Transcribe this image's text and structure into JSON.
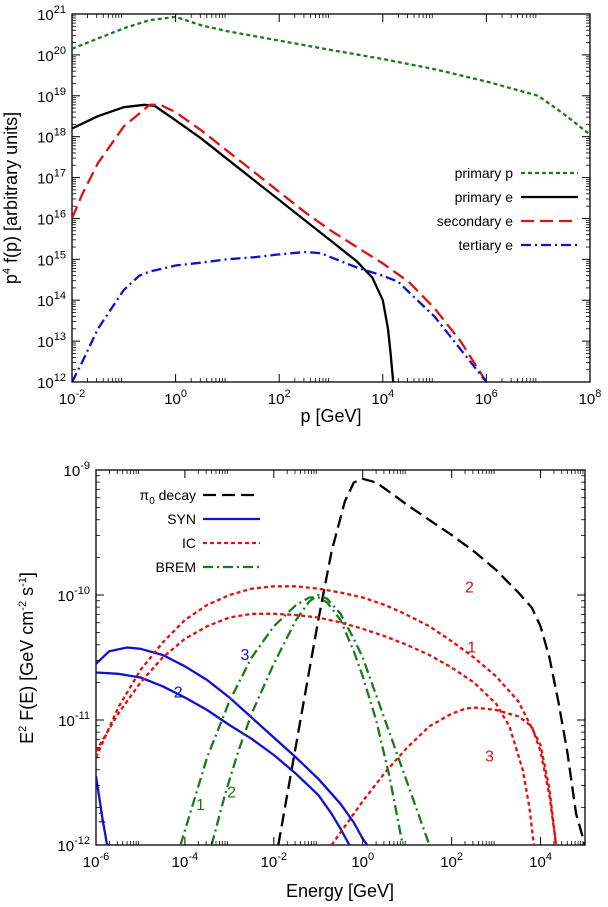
{
  "chart_data": [
    {
      "type": "line",
      "xlabel": "p [GeV]",
      "ylabel_base": "p",
      "ylabel_sup": "4",
      "ylabel_rest": " f(p) [arbitrary units]",
      "xscale": "log",
      "yscale": "log",
      "xlim": [
        0.01,
        100000000
      ],
      "ylim": [
        1000000000000.0,
        1e+21
      ],
      "xticks": [
        {
          "exp": -2,
          "base": "10",
          "sup": "-2"
        },
        {
          "exp": 0,
          "base": "10",
          "sup": "0"
        },
        {
          "exp": 2,
          "base": "10",
          "sup": "2"
        },
        {
          "exp": 4,
          "base": "10",
          "sup": "4"
        },
        {
          "exp": 6,
          "base": "10",
          "sup": "6"
        },
        {
          "exp": 8,
          "base": "10",
          "sup": "8"
        }
      ],
      "yticks": [
        {
          "exp": 12,
          "base": "10",
          "sup": "12"
        },
        {
          "exp": 13,
          "base": "10",
          "sup": "13"
        },
        {
          "exp": 14,
          "base": "10",
          "sup": "14"
        },
        {
          "exp": 15,
          "base": "10",
          "sup": "15"
        },
        {
          "exp": 16,
          "base": "10",
          "sup": "16"
        },
        {
          "exp": 17,
          "base": "10",
          "sup": "17"
        },
        {
          "exp": 18,
          "base": "10",
          "sup": "18"
        },
        {
          "exp": 19,
          "base": "10",
          "sup": "19"
        },
        {
          "exp": 20,
          "base": "10",
          "sup": "20"
        },
        {
          "exp": 21,
          "base": "10",
          "sup": "21"
        }
      ],
      "legend_position": "right",
      "series": [
        {
          "name": "primary p",
          "color": "#1a7a1a",
          "dash": "short-dash",
          "logx": [
            -2,
            -1.5,
            -1,
            -0.5,
            0,
            0.5,
            1,
            2,
            3,
            4,
            5,
            6,
            7,
            7.5,
            8
          ],
          "logy": [
            20.15,
            20.4,
            20.65,
            20.85,
            20.93,
            20.72,
            20.58,
            20.35,
            20.12,
            19.9,
            19.65,
            19.35,
            19.0,
            18.55,
            18.05
          ]
        },
        {
          "name": "primary e",
          "color": "#000000",
          "dash": "solid",
          "logx": [
            -2,
            -1.5,
            -1,
            -0.6,
            -0.4,
            0,
            0.5,
            1,
            1.5,
            2,
            2.5,
            3,
            3.5,
            3.8,
            4,
            4.1,
            4.15,
            4.2
          ],
          "logy": [
            18.2,
            18.5,
            18.72,
            18.78,
            18.75,
            18.4,
            17.95,
            17.45,
            16.95,
            16.45,
            15.95,
            15.45,
            14.95,
            14.55,
            14.0,
            13.3,
            12.7,
            12.0
          ]
        },
        {
          "name": "secondary e",
          "color": "#e01010",
          "dash": "long-dash",
          "logx": [
            -2,
            -1.8,
            -1.5,
            -1,
            -0.5,
            -0.3,
            0,
            0.5,
            1,
            1.5,
            2,
            2.5,
            3,
            3.5,
            4,
            4.5,
            5,
            5.5,
            6
          ],
          "logy": [
            16.0,
            16.6,
            17.35,
            18.25,
            18.78,
            18.78,
            18.6,
            18.15,
            17.65,
            17.15,
            16.65,
            16.15,
            15.7,
            15.3,
            14.9,
            14.45,
            13.8,
            13.0,
            12.0
          ]
        },
        {
          "name": "tertiary e",
          "color": "#1010d0",
          "dash": "dash-dot",
          "logx": [
            -2,
            -1.8,
            -1.5,
            -1,
            -0.7,
            -0.5,
            0,
            0.5,
            1,
            1.5,
            2,
            2.5,
            2.8,
            3,
            3.5,
            4,
            4.3,
            4.5,
            5,
            5.5,
            6
          ],
          "logy": [
            12.0,
            12.5,
            13.3,
            14.25,
            14.6,
            14.7,
            14.85,
            14.92,
            15.0,
            15.05,
            15.12,
            15.18,
            15.15,
            15.05,
            14.8,
            14.6,
            14.45,
            14.2,
            13.6,
            12.8,
            12.0
          ]
        }
      ]
    },
    {
      "type": "line",
      "xlabel": "Energy [GeV]",
      "ylabel_base": "E",
      "ylabel_sup": "2",
      "ylabel_rest": " F(E) [GeV cm",
      "ylabel_sup2": "-2",
      "ylabel_rest2": " s",
      "ylabel_sup3": "-1",
      "ylabel_end": "]",
      "xscale": "log",
      "yscale": "log",
      "xlim": [
        1e-06,
        100000
      ],
      "ylim": [
        1e-12,
        1e-09
      ],
      "xticks": [
        {
          "exp": -6,
          "base": "10",
          "sup": "-6"
        },
        {
          "exp": -4,
          "base": "10",
          "sup": "-4"
        },
        {
          "exp": -2,
          "base": "10",
          "sup": "-2"
        },
        {
          "exp": 0,
          "base": "10",
          "sup": "0"
        },
        {
          "exp": 2,
          "base": "10",
          "sup": "2"
        },
        {
          "exp": 4,
          "base": "10",
          "sup": "4"
        }
      ],
      "yticks": [
        {
          "exp": -12,
          "base": "10",
          "sup": "-12"
        },
        {
          "exp": -11,
          "base": "10",
          "sup": "-11"
        },
        {
          "exp": -10,
          "base": "10",
          "sup": "-10"
        },
        {
          "exp": -9,
          "base": "10",
          "sup": "-9"
        }
      ],
      "legend_position": "top-left",
      "legend": [
        {
          "name": "π",
          "sub": "0",
          "rest": " decay",
          "color": "#000000",
          "dash": "long-dash"
        },
        {
          "name": "SYN",
          "color": "#1010d0",
          "dash": "solid"
        },
        {
          "name": "IC",
          "color": "#e01010",
          "dash": "short-dash"
        },
        {
          "name": "BREM",
          "color": "#1a7a1a",
          "dash": "dash-dot"
        }
      ],
      "series": [
        {
          "id": "pi0",
          "color": "#000000",
          "dash": "long-dash",
          "logx": [
            -1.9,
            -1.6,
            -1.3,
            -1,
            -0.7,
            -0.4,
            -0.2,
            0,
            0.3,
            0.7,
            1,
            1.5,
            2,
            2.5,
            3,
            3.5,
            3.8,
            4,
            4.2,
            4.4,
            4.6,
            4.8,
            5
          ],
          "logy": [
            -12,
            -11.4,
            -10.8,
            -10.2,
            -9.65,
            -9.25,
            -9.1,
            -9.07,
            -9.1,
            -9.2,
            -9.28,
            -9.4,
            -9.52,
            -9.65,
            -9.8,
            -9.98,
            -10.1,
            -10.25,
            -10.5,
            -10.85,
            -11.25,
            -11.75,
            -12
          ]
        },
        {
          "id": "syn1",
          "color": "#1010d0",
          "dash": "solid",
          "logx": [
            -6,
            -5.85,
            -5.75,
            -5.7
          ],
          "logy": [
            -11.45,
            -11.8,
            -12.0,
            -12.0
          ]
        },
        {
          "id": "syn2",
          "color": "#1010d0",
          "dash": "solid",
          "logx": [
            -6,
            -5.5,
            -5,
            -4.5,
            -4,
            -3.5,
            -3,
            -2.5,
            -2,
            -1.5,
            -1,
            -0.7,
            -0.5,
            -0.3
          ],
          "logy": [
            -10.62,
            -10.63,
            -10.66,
            -10.73,
            -10.82,
            -10.92,
            -11.04,
            -11.15,
            -11.28,
            -11.43,
            -11.6,
            -11.75,
            -11.87,
            -12.0
          ]
        },
        {
          "id": "syn3",
          "color": "#1010d0",
          "dash": "solid",
          "logx": [
            -6,
            -5.7,
            -5.3,
            -5,
            -4.5,
            -4,
            -3.5,
            -3,
            -2.5,
            -2,
            -1.5,
            -1,
            -0.5,
            -0.2,
            0,
            0.1
          ],
          "logy": [
            -10.55,
            -10.45,
            -10.42,
            -10.43,
            -10.48,
            -10.57,
            -10.68,
            -10.82,
            -10.98,
            -11.14,
            -11.3,
            -11.47,
            -11.67,
            -11.82,
            -11.95,
            -12.0
          ]
        },
        {
          "id": "ic1",
          "color": "#e01010",
          "dash": "short-dash",
          "logx": [
            -6,
            -5.5,
            -5,
            -4.5,
            -4,
            -3.5,
            -3,
            -2.5,
            -2,
            -1.5,
            -1,
            -0.5,
            0,
            0.5,
            1,
            1.5,
            2,
            2.5,
            3,
            3.3,
            3.6,
            3.75,
            3.85
          ],
          "logy": [
            -11.25,
            -10.95,
            -10.7,
            -10.5,
            -10.35,
            -10.25,
            -10.18,
            -10.15,
            -10.15,
            -10.16,
            -10.18,
            -10.22,
            -10.27,
            -10.33,
            -10.4,
            -10.48,
            -10.58,
            -10.7,
            -10.87,
            -11.05,
            -11.4,
            -11.7,
            -12.0
          ]
        },
        {
          "id": "ic2",
          "color": "#e01010",
          "dash": "short-dash",
          "logx": [
            -6,
            -5.5,
            -5,
            -4.5,
            -4,
            -3.5,
            -3,
            -2.5,
            -2,
            -1.5,
            -1,
            -0.5,
            0,
            0.5,
            1,
            1.5,
            2,
            2.5,
            3,
            3.5,
            4,
            4.2,
            4.35
          ],
          "logy": [
            -11.3,
            -10.9,
            -10.6,
            -10.38,
            -10.2,
            -10.08,
            -10.0,
            -9.95,
            -9.93,
            -9.93,
            -9.95,
            -9.98,
            -10.02,
            -10.08,
            -10.16,
            -10.25,
            -10.37,
            -10.5,
            -10.65,
            -10.85,
            -11.2,
            -11.55,
            -12.0
          ]
        },
        {
          "id": "ic3",
          "color": "#e01010",
          "dash": "short-dash",
          "logx": [
            -0.7,
            -0.4,
            0,
            0.5,
            1,
            1.5,
            2,
            2.3,
            2.5,
            3,
            3.5,
            3.8,
            4,
            4.2,
            4.35
          ],
          "logy": [
            -12.0,
            -11.85,
            -11.65,
            -11.42,
            -11.22,
            -11.05,
            -10.95,
            -10.91,
            -10.9,
            -10.92,
            -10.97,
            -11.05,
            -11.25,
            -11.6,
            -12.0
          ]
        },
        {
          "id": "brem1",
          "color": "#1a7a1a",
          "dash": "dash-dot",
          "logx": [
            -4.1,
            -3.8,
            -3.5,
            -3,
            -2.5,
            -2,
            -1.5,
            -1.2,
            -1,
            -0.8,
            -0.5,
            -0.2,
            0,
            0.3,
            0.6,
            0.9
          ],
          "logy": [
            -12.0,
            -11.65,
            -11.3,
            -10.85,
            -10.5,
            -10.25,
            -10.08,
            -10.02,
            -10.02,
            -10.06,
            -10.2,
            -10.45,
            -10.65,
            -11.0,
            -11.45,
            -12.0
          ]
        },
        {
          "id": "brem2",
          "color": "#1a7a1a",
          "dash": "dash-dot",
          "logx": [
            -3.4,
            -3.1,
            -2.8,
            -2.5,
            -2,
            -1.5,
            -1.2,
            -1,
            -0.8,
            -0.5,
            -0.2,
            0,
            0.3,
            0.6,
            1,
            1.3,
            1.5
          ],
          "logy": [
            -12.0,
            -11.6,
            -11.25,
            -10.95,
            -10.55,
            -10.2,
            -10.05,
            -10.0,
            -10.03,
            -10.15,
            -10.35,
            -10.5,
            -10.8,
            -11.1,
            -11.5,
            -11.8,
            -12.0
          ]
        }
      ],
      "annotations": [
        {
          "text": "1",
          "color": "#1010d0",
          "logx": -5.87,
          "logy": -11.82
        },
        {
          "text": "2",
          "color": "#1010d0",
          "logx": -4.15,
          "logy": -10.82
        },
        {
          "text": "3",
          "color": "#1010d0",
          "logx": -2.65,
          "logy": -10.52
        },
        {
          "text": "2",
          "color": "#e01010",
          "logx": 2.4,
          "logy": -9.98
        },
        {
          "text": "1",
          "color": "#e01010",
          "logx": 2.45,
          "logy": -10.46
        },
        {
          "text": "3",
          "color": "#e01010",
          "logx": 2.85,
          "logy": -11.33
        },
        {
          "text": "1",
          "color": "#1a7a1a",
          "logx": -3.65,
          "logy": -11.72
        },
        {
          "text": "2",
          "color": "#1a7a1a",
          "logx": -2.95,
          "logy": -11.62
        }
      ]
    }
  ]
}
